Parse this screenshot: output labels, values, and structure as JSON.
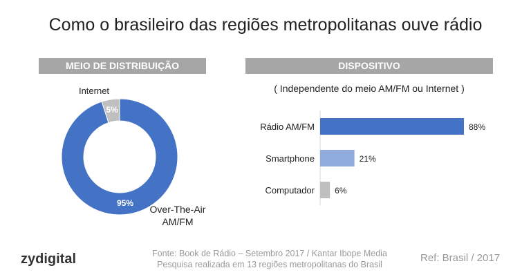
{
  "title": "Como o brasileiro das regiões metropolitanas ouve rádio",
  "chart_data": [
    {
      "type": "pie",
      "donut": true,
      "title": "MEIO DE DISTRIBUIÇÃO",
      "slices": [
        {
          "label": "Internet",
          "value": 5,
          "display": "5%",
          "color": "#bfbfbf"
        },
        {
          "label": "Over-The-Air AM/FM",
          "value": 95,
          "display": "95%",
          "color": "#4472c4"
        }
      ]
    },
    {
      "type": "bar",
      "orientation": "horizontal",
      "title": "DISPOSITIVO",
      "subtitle": "( Independente do meio AM/FM ou Internet )",
      "categories": [
        "Rádio AM/FM",
        "Smartphone",
        "Computador"
      ],
      "values": [
        88,
        21,
        6
      ],
      "labels": [
        "88%",
        "21%",
        "6%"
      ],
      "colors": [
        "#4472c4",
        "#8faadc",
        "#bfbfbf"
      ]
    }
  ],
  "footer": {
    "logo": "zydigital",
    "source_line1": "Fonte: Book de Rádio – Setembro 2017 / Kantar Ibope Media",
    "source_line2": "Pesquisa realizada em 13 regiões metropolitanas do Brasil",
    "ref": "Ref: Brasil / 2017"
  }
}
